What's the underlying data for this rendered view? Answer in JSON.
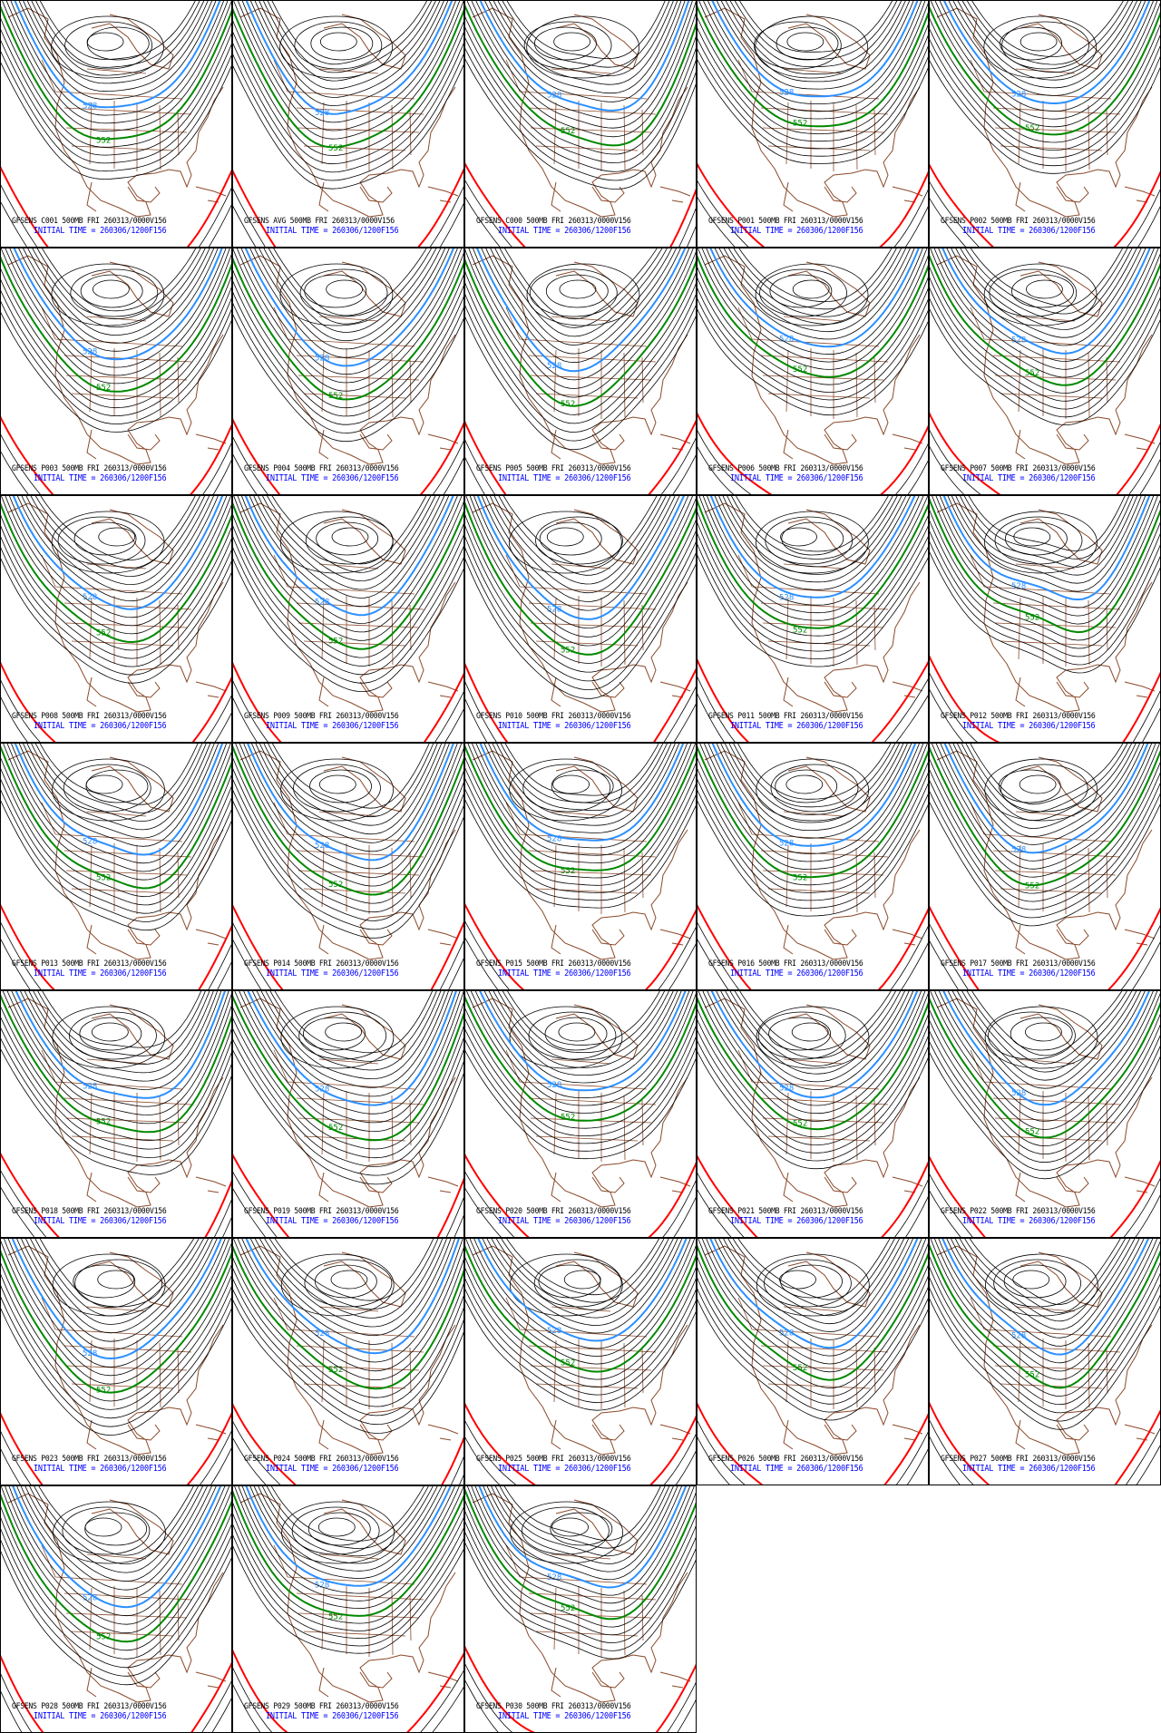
{
  "figure": {
    "variable": "500MB geopotential height",
    "valid_header": "FRI 260313/0000V156",
    "colors": {
      "black": "#000000",
      "coast": "#8b4a2b",
      "c528": "#2b8fff",
      "c552": "#008800",
      "c576": "#ff0000",
      "init_text": "#0000ff"
    },
    "highlight_contours": [
      {
        "level": "528",
        "color": "#2b8fff"
      },
      {
        "level": "552",
        "color": "#008800"
      },
      {
        "level": "576",
        "color": "#ff0000"
      }
    ]
  },
  "panels": [
    {
      "title": "GFSENS C001 500MB FRI 260313/0000V156",
      "init": "INITIAL TIME = 260306/1200F156"
    },
    {
      "title": "GFSENS AVG 500MB FRI 260313/0000V156",
      "init": "INITIAL TIME = 260306/1200F156"
    },
    {
      "title": "GFSENS C000 500MB FRI 260313/0000V156",
      "init": "INITIAL TIME = 260306/1200F156"
    },
    {
      "title": "GFSENS P001 500MB FRI 260313/0000V156",
      "init": "INITIAL TIME = 260306/1200F156"
    },
    {
      "title": "GFSENS P002 500MB FRI 260313/0000V156",
      "init": "INITIAL TIME = 260306/1200F156"
    },
    {
      "title": "GFSENS P003 500MB FRI 260313/0000V156",
      "init": "INITIAL TIME = 260306/1200F156"
    },
    {
      "title": "GFSENS P004 500MB FRI 260313/0000V156",
      "init": "INITIAL TIME = 260306/1200F156"
    },
    {
      "title": "GFSENS P005 500MB FRI 260313/0000V156",
      "init": "INITIAL TIME = 260306/1200F156"
    },
    {
      "title": "GFSENS P006 500MB FRI 260313/0000V156",
      "init": "INITIAL TIME = 260306/1200F156"
    },
    {
      "title": "GFSENS P007 500MB FRI 260313/0000V156",
      "init": "INITIAL TIME = 260306/1200F156"
    },
    {
      "title": "GFSENS P008 500MB FRI 260313/0000V156",
      "init": "INITIAL TIME = 260306/1200F156"
    },
    {
      "title": "GFSENS P009 500MB FRI 260313/0000V156",
      "init": "INITIAL TIME = 260306/1200F156"
    },
    {
      "title": "GFSENS P010 500MB FRI 260313/0000V156",
      "init": "INITIAL TIME = 260306/1200F156"
    },
    {
      "title": "GFSENS P011 500MB FRI 260313/0000V156",
      "init": "INITIAL TIME = 260306/1200F156"
    },
    {
      "title": "GFSENS P012 500MB FRI 260313/0000V156",
      "init": "INITIAL TIME = 260306/1200F156"
    },
    {
      "title": "GFSENS P013 500MB FRI 260313/0000V156",
      "init": "INITIAL TIME = 260306/1200F156"
    },
    {
      "title": "GFSENS P014 500MB FRI 260313/0000V156",
      "init": "INITIAL TIME = 260306/1200F156"
    },
    {
      "title": "GFSENS P015 500MB FRI 260313/0000V156",
      "init": "INITIAL TIME = 260306/1200F156"
    },
    {
      "title": "GFSENS P016 500MB FRI 260313/0000V156",
      "init": "INITIAL TIME = 260306/1200F156"
    },
    {
      "title": "GFSENS P017 500MB FRI 260313/0000V156",
      "init": "INITIAL TIME = 260306/1200F156"
    },
    {
      "title": "GFSENS P018 500MB FRI 260313/0000V156",
      "init": "INITIAL TIME = 260306/1200F156"
    },
    {
      "title": "GFSENS P019 500MB FRI 260313/0000V156",
      "init": "INITIAL TIME = 260306/1200F156"
    },
    {
      "title": "GFSENS P020 500MB FRI 260313/0000V156",
      "init": "INITIAL TIME = 260306/1200F156"
    },
    {
      "title": "GFSENS P021 500MB FRI 260313/0000V156",
      "init": "INITIAL TIME = 260306/1200F156"
    },
    {
      "title": "GFSENS P022 500MB FRI 260313/0000V156",
      "init": "INITIAL TIME = 260306/1200F156"
    },
    {
      "title": "GFSENS P023 500MB FRI 260313/0000V156",
      "init": "INITIAL TIME = 260306/1200F156"
    },
    {
      "title": "GFSENS P024 500MB FRI 260313/0000V156",
      "init": "INITIAL TIME = 260306/1200F156"
    },
    {
      "title": "GFSENS P025 500MB FRI 260313/0000V156",
      "init": "INITIAL TIME = 260306/1200F156"
    },
    {
      "title": "GFSENS P026 500MB FRI 260313/0000V156",
      "init": "INITIAL TIME = 260306/1200F156"
    },
    {
      "title": "GFSENS P027 500MB FRI 260313/0000V156",
      "init": "INITIAL TIME = 260306/1200F156"
    },
    {
      "title": "GFSENS P028 500MB FRI 260313/0000V156",
      "init": "INITIAL TIME = 260306/1200F156"
    },
    {
      "title": "GFSENS P029 500MB FRI 260313/0000V156",
      "init": "INITIAL TIME = 260306/1200F156"
    },
    {
      "title": "GFSENS P030 500MB FRI 260313/0000V156",
      "init": "INITIAL TIME = 260306/1200F156"
    }
  ]
}
